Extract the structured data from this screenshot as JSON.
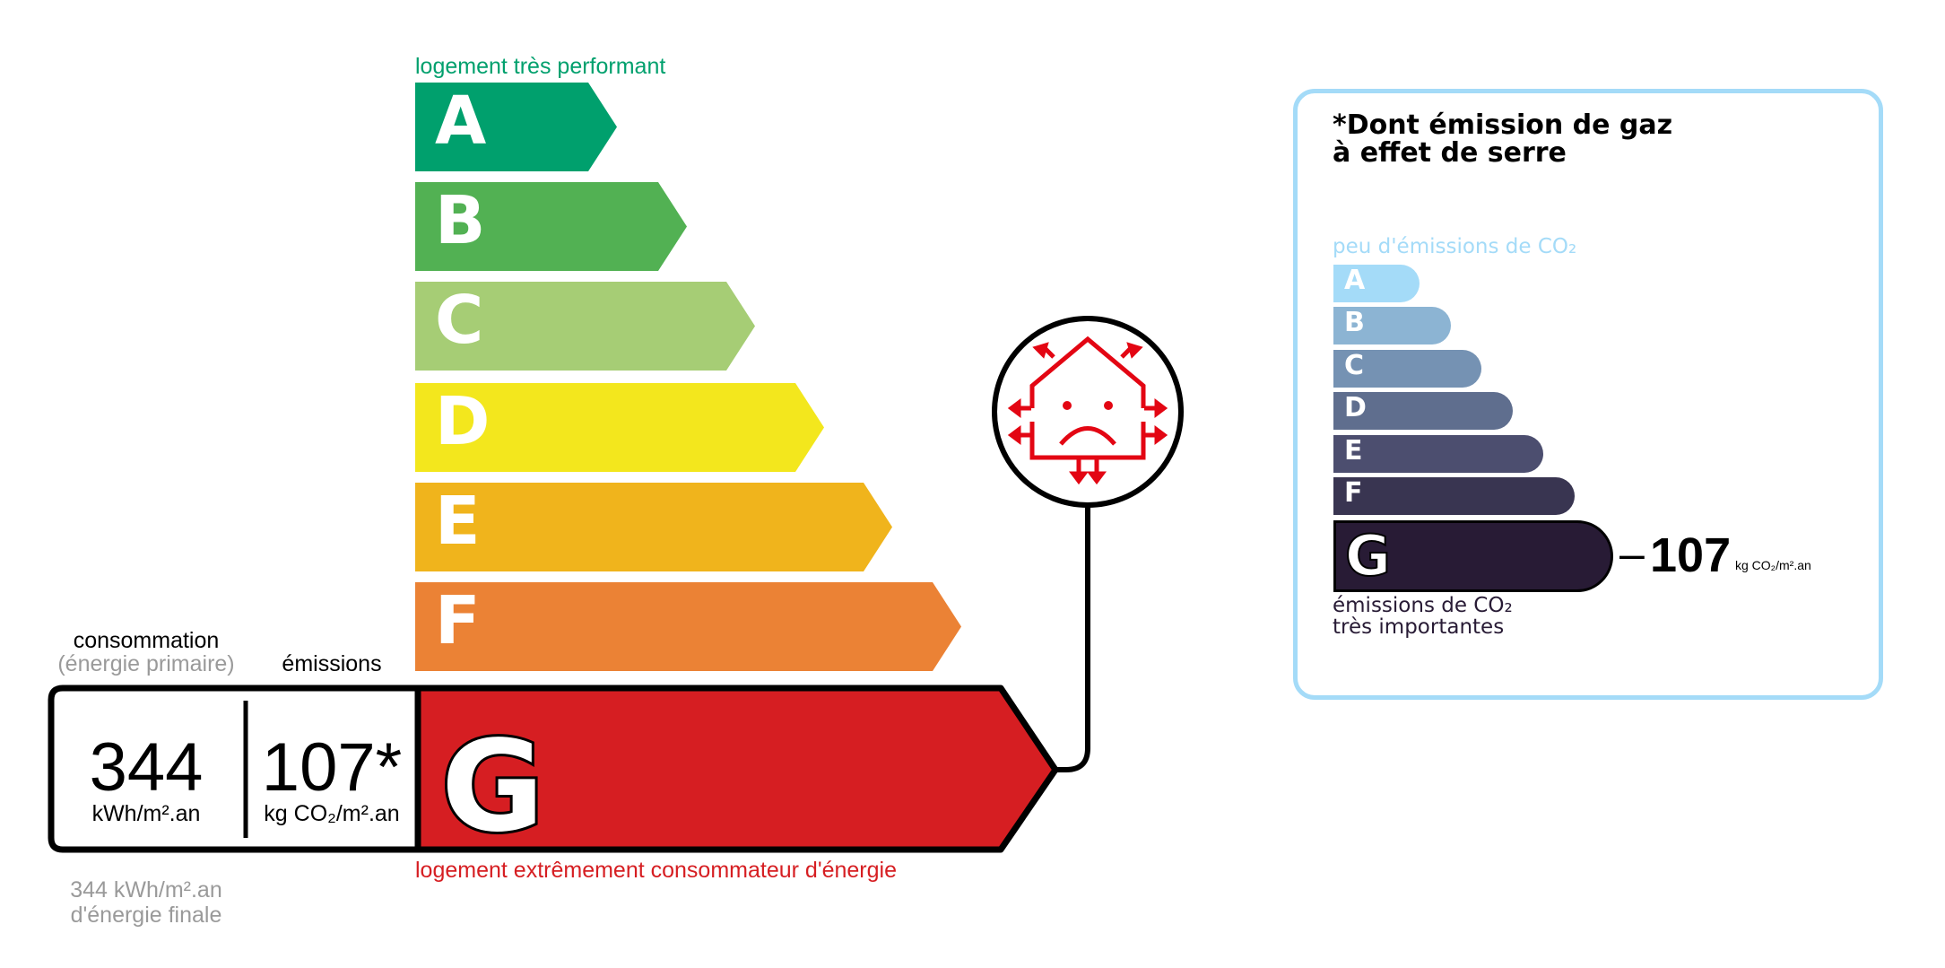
{
  "energy": {
    "top_label": "logement très performant",
    "bottom_label": "logement extrêmement consommateur d'énergie",
    "classes": [
      {
        "letter": "A",
        "color": "#00a06d"
      },
      {
        "letter": "B",
        "color": "#52b153"
      },
      {
        "letter": "C",
        "color": "#a6cd75"
      },
      {
        "letter": "D",
        "color": "#f3e71d"
      },
      {
        "letter": "E",
        "color": "#f0b41c"
      },
      {
        "letter": "F",
        "color": "#eb8235"
      },
      {
        "letter": "G",
        "color": "#d61e22"
      }
    ],
    "current_class": "G",
    "consumption_label": "consommation",
    "consumption_sublabel": "(énergie primaire)",
    "emissions_label": "émissions",
    "consumption_value": "344",
    "consumption_unit": "kWh/m².an",
    "emissions_value": "107*",
    "emissions_unit": "kg CO₂/m².an",
    "final_energy_line1": "344 kWh/m².an",
    "final_energy_line2": "d'énergie finale",
    "icon": "house-sad-face-heat-loss-icon"
  },
  "ges": {
    "title_line1": "*Dont émission de gaz",
    "title_line2": "à effet de serre",
    "top_label": "peu d'émissions de CO₂",
    "bottom_label_line1": "émissions de CO₂",
    "bottom_label_line2": "très importantes",
    "classes": [
      {
        "letter": "A",
        "color": "#a4dbf8"
      },
      {
        "letter": "B",
        "color": "#8cb4d3"
      },
      {
        "letter": "C",
        "color": "#7592b3"
      },
      {
        "letter": "D",
        "color": "#5f6e8e"
      },
      {
        "letter": "E",
        "color": "#4c4e6f"
      },
      {
        "letter": "F",
        "color": "#393551"
      },
      {
        "letter": "G",
        "color": "#281b35"
      }
    ],
    "current_class": "G",
    "value": "107",
    "dash": "–",
    "unit": "kg CO₂/m².an",
    "border_color": "#a4dbf8"
  }
}
